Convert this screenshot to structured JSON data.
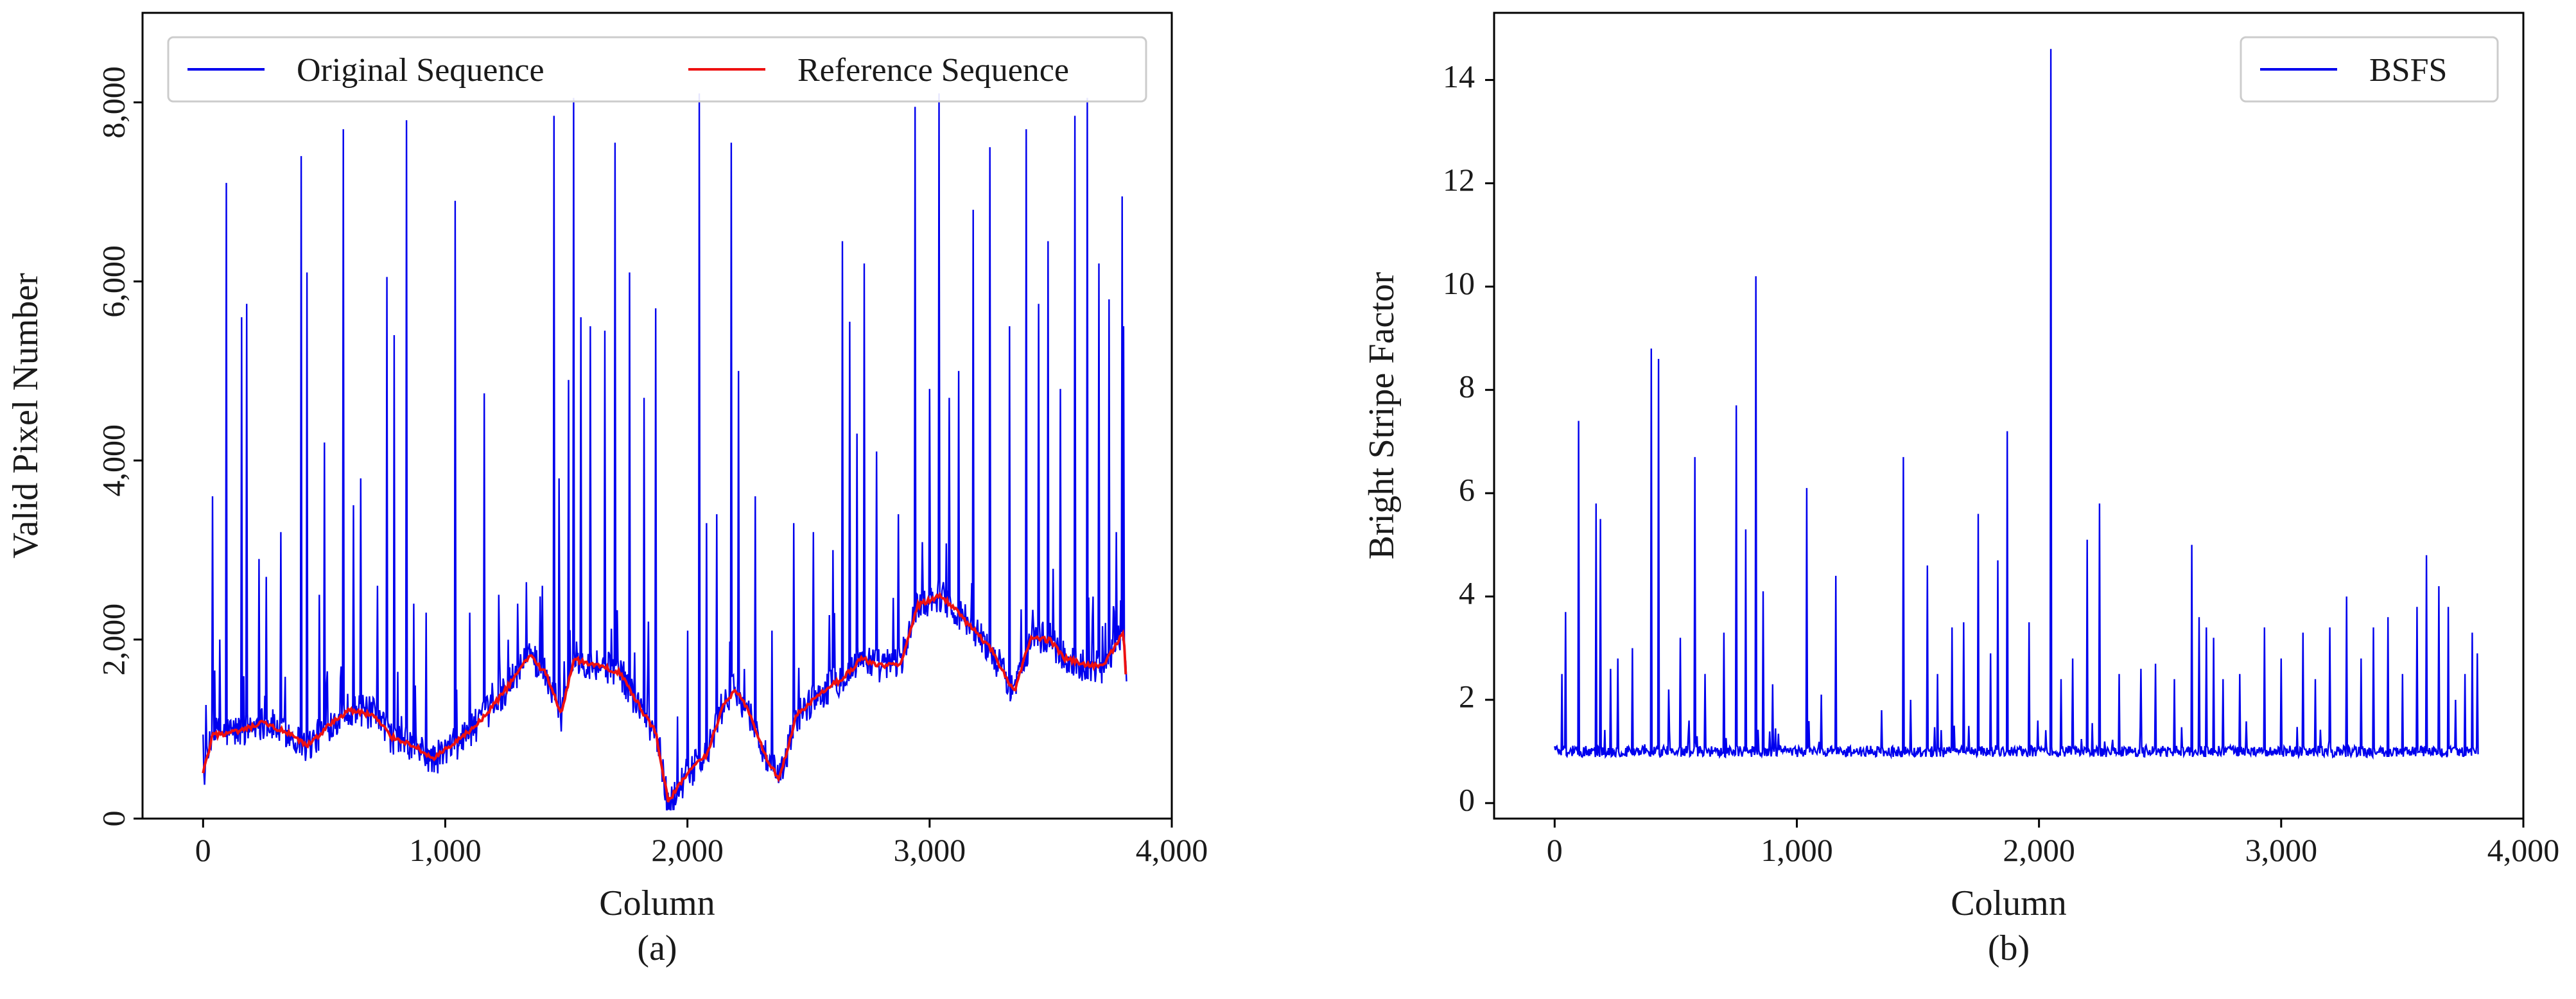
{
  "chart_data": [
    {
      "type": "line",
      "panel": "(a)",
      "xlabel": "Column",
      "ylabel": "Valid Pixel Number",
      "xlim": [
        -250,
        4000
      ],
      "ylim": [
        0,
        9000
      ],
      "xticks": [
        0,
        1000,
        2000,
        3000,
        4000
      ],
      "xtick_labels": [
        "0",
        "1,000",
        "2,000",
        "3,000",
        "4,000"
      ],
      "yticks": [
        0,
        2000,
        4000,
        6000,
        8000
      ],
      "ytick_labels": [
        "0",
        "2,000",
        "4,000",
        "6,000",
        "8,000"
      ],
      "legend": {
        "position": "top",
        "entries": [
          "Original Sequence",
          "Reference Sequence"
        ]
      },
      "series": [
        {
          "name": "Original Sequence",
          "color": "#0000ee",
          "baseline_points": [
            [
              0,
              450
            ],
            [
              40,
              950
            ],
            [
              150,
              980
            ],
            [
              250,
              1080
            ],
            [
              350,
              960
            ],
            [
              430,
              800
            ],
            [
              520,
              1050
            ],
            [
              600,
              1230
            ],
            [
              700,
              1170
            ],
            [
              780,
              900
            ],
            [
              860,
              820
            ],
            [
              950,
              650
            ],
            [
              1050,
              850
            ],
            [
              1150,
              1100
            ],
            [
              1250,
              1450
            ],
            [
              1350,
              1850
            ],
            [
              1420,
              1600
            ],
            [
              1480,
              1150
            ],
            [
              1530,
              1800
            ],
            [
              1650,
              1700
            ],
            [
              1720,
              1650
            ],
            [
              1800,
              1250
            ],
            [
              1870,
              950
            ],
            [
              1920,
              150
            ],
            [
              2000,
              500
            ],
            [
              2080,
              700
            ],
            [
              2150,
              1300
            ],
            [
              2200,
              1450
            ],
            [
              2260,
              1150
            ],
            [
              2320,
              700
            ],
            [
              2380,
              420
            ],
            [
              2450,
              1150
            ],
            [
              2550,
              1400
            ],
            [
              2650,
              1600
            ],
            [
              2720,
              1800
            ],
            [
              2800,
              1700
            ],
            [
              2880,
              1750
            ],
            [
              2950,
              2400
            ],
            [
              3050,
              2500
            ],
            [
              3150,
              2200
            ],
            [
              3250,
              1900
            ],
            [
              3350,
              1400
            ],
            [
              3420,
              2050
            ],
            [
              3500,
              2000
            ],
            [
              3550,
              1800
            ],
            [
              3650,
              1700
            ],
            [
              3720,
              1700
            ],
            [
              3800,
              2100
            ],
            [
              3815,
              1300
            ]
          ],
          "spikes": [
            [
              40,
              3600
            ],
            [
              70,
              2000
            ],
            [
              95,
              7100
            ],
            [
              160,
              5600
            ],
            [
              180,
              5750
            ],
            [
              230,
              2900
            ],
            [
              260,
              2700
            ],
            [
              320,
              3200
            ],
            [
              405,
              7400
            ],
            [
              430,
              6100
            ],
            [
              480,
              2500
            ],
            [
              500,
              4200
            ],
            [
              580,
              7700
            ],
            [
              620,
              3500
            ],
            [
              650,
              3800
            ],
            [
              720,
              2600
            ],
            [
              760,
              6050
            ],
            [
              790,
              5400
            ],
            [
              840,
              7800
            ],
            [
              870,
              2400
            ],
            [
              920,
              2300
            ],
            [
              1040,
              6900
            ],
            [
              1100,
              2300
            ],
            [
              1160,
              4750
            ],
            [
              1220,
              2500
            ],
            [
              1300,
              2400
            ],
            [
              1400,
              2600
            ],
            [
              1450,
              7850
            ],
            [
              1470,
              3800
            ],
            [
              1510,
              4900
            ],
            [
              1530,
              8050
            ],
            [
              1560,
              5600
            ],
            [
              1600,
              5500
            ],
            [
              1660,
              5450
            ],
            [
              1700,
              7550
            ],
            [
              1760,
              6100
            ],
            [
              1820,
              4700
            ],
            [
              1840,
              2200
            ],
            [
              1870,
              5700
            ],
            [
              2000,
              2100
            ],
            [
              2050,
              8100
            ],
            [
              2080,
              3300
            ],
            [
              2120,
              3400
            ],
            [
              2180,
              7550
            ],
            [
              2210,
              5000
            ],
            [
              2280,
              3600
            ],
            [
              2350,
              2100
            ],
            [
              2440,
              3300
            ],
            [
              2520,
              3200
            ],
            [
              2600,
              3000
            ],
            [
              2640,
              6450
            ],
            [
              2670,
              5550
            ],
            [
              2700,
              4300
            ],
            [
              2730,
              6200
            ],
            [
              2780,
              4100
            ],
            [
              2870,
              3400
            ],
            [
              2940,
              7950
            ],
            [
              3000,
              4800
            ],
            [
              3040,
              8100
            ],
            [
              3080,
              4700
            ],
            [
              3120,
              5000
            ],
            [
              3180,
              6800
            ],
            [
              3250,
              7500
            ],
            [
              3330,
              5500
            ],
            [
              3400,
              7700
            ],
            [
              3450,
              5750
            ],
            [
              3490,
              6450
            ],
            [
              3540,
              4800
            ],
            [
              3600,
              7850
            ],
            [
              3650,
              8050
            ],
            [
              3700,
              6200
            ],
            [
              3740,
              5800
            ],
            [
              3770,
              3200
            ],
            [
              3795,
              6950
            ],
            [
              3800,
              5500
            ]
          ]
        },
        {
          "name": "Reference Sequence",
          "color": "#ee1111",
          "points": [
            [
              0,
              500
            ],
            [
              40,
              930
            ],
            [
              150,
              970
            ],
            [
              250,
              1070
            ],
            [
              350,
              950
            ],
            [
              430,
              810
            ],
            [
              520,
              1040
            ],
            [
              600,
              1210
            ],
            [
              700,
              1160
            ],
            [
              780,
              910
            ],
            [
              860,
              830
            ],
            [
              950,
              670
            ],
            [
              1050,
              860
            ],
            [
              1150,
              1100
            ],
            [
              1250,
              1440
            ],
            [
              1350,
              1830
            ],
            [
              1420,
              1600
            ],
            [
              1480,
              1170
            ],
            [
              1530,
              1780
            ],
            [
              1650,
              1690
            ],
            [
              1720,
              1640
            ],
            [
              1800,
              1260
            ],
            [
              1870,
              960
            ],
            [
              1920,
              190
            ],
            [
              2000,
              510
            ],
            [
              2080,
              710
            ],
            [
              2150,
              1290
            ],
            [
              2200,
              1440
            ],
            [
              2260,
              1160
            ],
            [
              2320,
              710
            ],
            [
              2380,
              440
            ],
            [
              2450,
              1150
            ],
            [
              2550,
              1390
            ],
            [
              2650,
              1590
            ],
            [
              2720,
              1790
            ],
            [
              2800,
              1700
            ],
            [
              2880,
              1740
            ],
            [
              2950,
              2380
            ],
            [
              3050,
              2490
            ],
            [
              3150,
              2200
            ],
            [
              3250,
              1910
            ],
            [
              3350,
              1420
            ],
            [
              3420,
              2040
            ],
            [
              3500,
              1990
            ],
            [
              3550,
              1800
            ],
            [
              3650,
              1710
            ],
            [
              3720,
              1710
            ],
            [
              3800,
              2080
            ],
            [
              3815,
              1400
            ]
          ]
        }
      ]
    },
    {
      "type": "line",
      "panel": "(b)",
      "xlabel": "Column",
      "ylabel": "Bright Stripe Factor",
      "xlim": [
        -250,
        4000
      ],
      "ylim": [
        -0.3,
        15.3
      ],
      "xticks": [
        0,
        1000,
        2000,
        3000,
        4000
      ],
      "xtick_labels": [
        "0",
        "1,000",
        "2,000",
        "3,000",
        "4,000"
      ],
      "yticks": [
        0,
        2,
        4,
        6,
        8,
        10,
        12,
        14
      ],
      "ytick_labels": [
        "0",
        "2",
        "4",
        "6",
        "8",
        "10",
        "12",
        "14"
      ],
      "legend": {
        "position": "top-right",
        "entries": [
          "BSFS"
        ]
      },
      "series": [
        {
          "name": "BSFS",
          "color": "#0000ee",
          "baseline": 1.0,
          "spikes": [
            [
              10,
              2.0
            ],
            [
              30,
              2.5
            ],
            [
              45,
              3.7
            ],
            [
              100,
              7.4
            ],
            [
              170,
              5.8
            ],
            [
              190,
              5.5
            ],
            [
              230,
              2.6
            ],
            [
              260,
              2.8
            ],
            [
              320,
              3.0
            ],
            [
              400,
              8.8
            ],
            [
              430,
              8.6
            ],
            [
              470,
              2.2
            ],
            [
              520,
              3.2
            ],
            [
              580,
              6.7
            ],
            [
              620,
              2.5
            ],
            [
              700,
              3.3
            ],
            [
              750,
              7.7
            ],
            [
              790,
              5.3
            ],
            [
              830,
              10.2
            ],
            [
              860,
              4.1
            ],
            [
              900,
              2.3
            ],
            [
              1040,
              6.1
            ],
            [
              1100,
              2.1
            ],
            [
              1160,
              4.4
            ],
            [
              1350,
              1.8
            ],
            [
              1440,
              6.7
            ],
            [
              1470,
              2.0
            ],
            [
              1540,
              4.6
            ],
            [
              1580,
              2.5
            ],
            [
              1640,
              3.4
            ],
            [
              1690,
              3.5
            ],
            [
              1750,
              5.6
            ],
            [
              1800,
              2.9
            ],
            [
              1830,
              4.7
            ],
            [
              1870,
              7.2
            ],
            [
              1960,
              3.5
            ],
            [
              2050,
              14.6
            ],
            [
              2090,
              2.4
            ],
            [
              2140,
              2.8
            ],
            [
              2200,
              5.1
            ],
            [
              2250,
              5.8
            ],
            [
              2330,
              2.5
            ],
            [
              2420,
              2.6
            ],
            [
              2480,
              2.7
            ],
            [
              2560,
              2.4
            ],
            [
              2630,
              5.0
            ],
            [
              2660,
              3.6
            ],
            [
              2690,
              3.4
            ],
            [
              2720,
              3.2
            ],
            [
              2760,
              2.4
            ],
            [
              2830,
              2.5
            ],
            [
              2930,
              3.4
            ],
            [
              3000,
              2.8
            ],
            [
              3090,
              3.3
            ],
            [
              3140,
              2.4
            ],
            [
              3200,
              3.4
            ],
            [
              3270,
              4.0
            ],
            [
              3330,
              2.8
            ],
            [
              3380,
              3.4
            ],
            [
              3440,
              3.6
            ],
            [
              3500,
              2.5
            ],
            [
              3560,
              3.8
            ],
            [
              3600,
              4.8
            ],
            [
              3650,
              4.2
            ],
            [
              3690,
              3.8
            ],
            [
              3720,
              2.0
            ],
            [
              3760,
              2.5
            ],
            [
              3790,
              3.3
            ],
            [
              3810,
              2.9
            ]
          ]
        }
      ]
    }
  ]
}
